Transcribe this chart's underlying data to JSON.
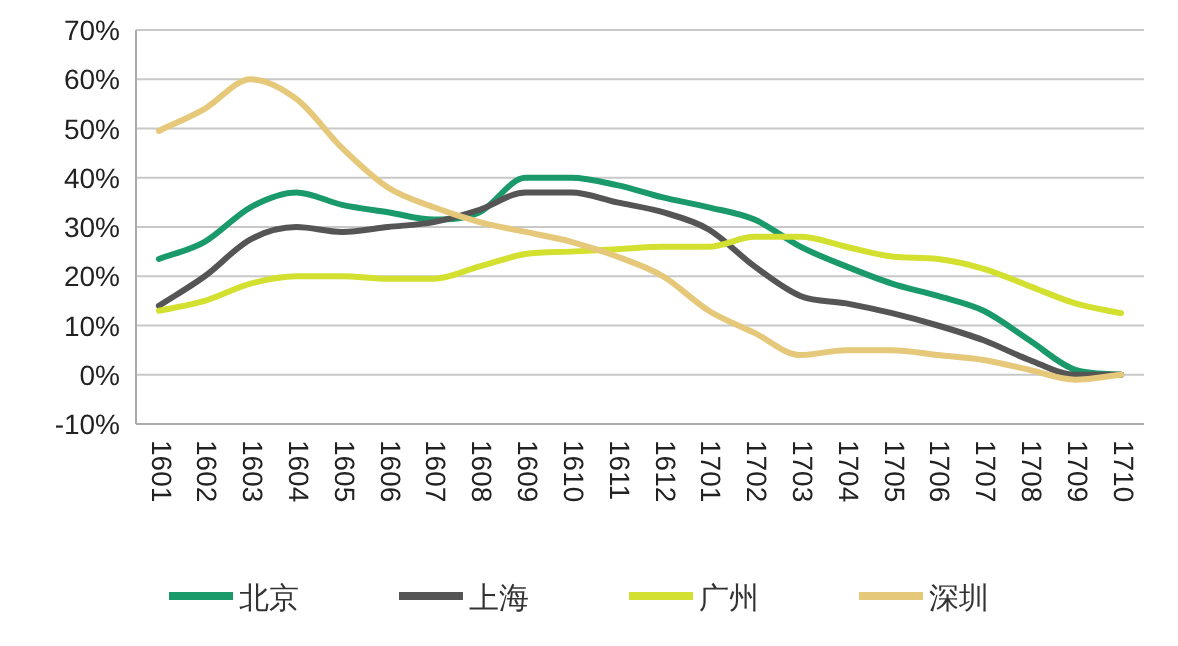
{
  "chart_data": {
    "type": "line",
    "categories": [
      "1601",
      "1602",
      "1603",
      "1604",
      "1605",
      "1606",
      "1607",
      "1608",
      "1609",
      "1610",
      "1611",
      "1612",
      "1701",
      "1702",
      "1703",
      "1704",
      "1705",
      "1706",
      "1707",
      "1708",
      "1709",
      "1710"
    ],
    "series": [
      {
        "name": "北京",
        "color": "#1a9a6a",
        "values": [
          23.5,
          27,
          34,
          37,
          34.5,
          33,
          31.5,
          33,
          40,
          40,
          38.5,
          36,
          34,
          31.5,
          26,
          22,
          18.5,
          16,
          13,
          7,
          1,
          0
        ]
      },
      {
        "name": "上海",
        "color": "#555555",
        "values": [
          14,
          20,
          27.5,
          30,
          29,
          30,
          31,
          33.5,
          37,
          37,
          35,
          33,
          29.5,
          22,
          16,
          14.5,
          12.5,
          10,
          7,
          3,
          0,
          0
        ]
      },
      {
        "name": "广州",
        "color": "#d4e030",
        "values": [
          13,
          15,
          18.5,
          20,
          20,
          19.5,
          19.5,
          22,
          24.5,
          25,
          25.5,
          26,
          26,
          28,
          28,
          26,
          24,
          23.5,
          21.5,
          18,
          14.5,
          12.5
        ]
      },
      {
        "name": "深圳",
        "color": "#e6c87a",
        "values": [
          49.5,
          54,
          60,
          56,
          46,
          38,
          34,
          31,
          29,
          27,
          24,
          20,
          13,
          8.5,
          4,
          5,
          5,
          4,
          3,
          1,
          -1,
          0
        ]
      }
    ],
    "ylim": [
      -10,
      70
    ],
    "yticks": [
      {
        "value": -10,
        "label": "-10%"
      },
      {
        "value": 0,
        "label": "0%"
      },
      {
        "value": 10,
        "label": "10%"
      },
      {
        "value": 20,
        "label": "20%"
      },
      {
        "value": 30,
        "label": "30%"
      },
      {
        "value": 40,
        "label": "40%"
      },
      {
        "value": 50,
        "label": "50%"
      },
      {
        "value": 60,
        "label": "60%"
      },
      {
        "value": 70,
        "label": "70%"
      }
    ],
    "grid": "y",
    "legend": "bottom",
    "marker": "none",
    "line_style": "solid"
  }
}
